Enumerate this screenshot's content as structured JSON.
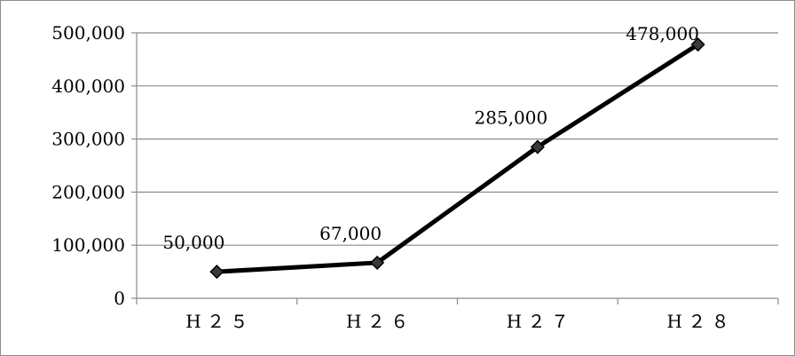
{
  "chart_data": {
    "type": "line",
    "categories": [
      "H２５",
      "H２６",
      "H２７",
      "H２８"
    ],
    "category_labels_display": [
      "H ２ ５",
      "H ２ ６",
      "H ２ ７",
      "H ２ ８"
    ],
    "series": [
      {
        "values": [
          50000,
          67000,
          285000,
          478000
        ]
      }
    ],
    "data_labels": [
      "50,000",
      "67,000",
      "285,000",
      "478,000"
    ],
    "y_ticks": [
      0,
      100000,
      200000,
      300000,
      400000,
      500000
    ],
    "y_tick_labels": [
      "0",
      "100,000",
      "200,000",
      "300,000",
      "400,000",
      "500,000"
    ],
    "ylim": [
      0,
      500000
    ],
    "title": "",
    "xlabel": "",
    "ylabel": "",
    "grid": true,
    "legend": "none",
    "line_color": "#000000",
    "marker": "diamond",
    "marker_fill": "#3a3a3a",
    "grid_color": "#8c8c8c"
  }
}
